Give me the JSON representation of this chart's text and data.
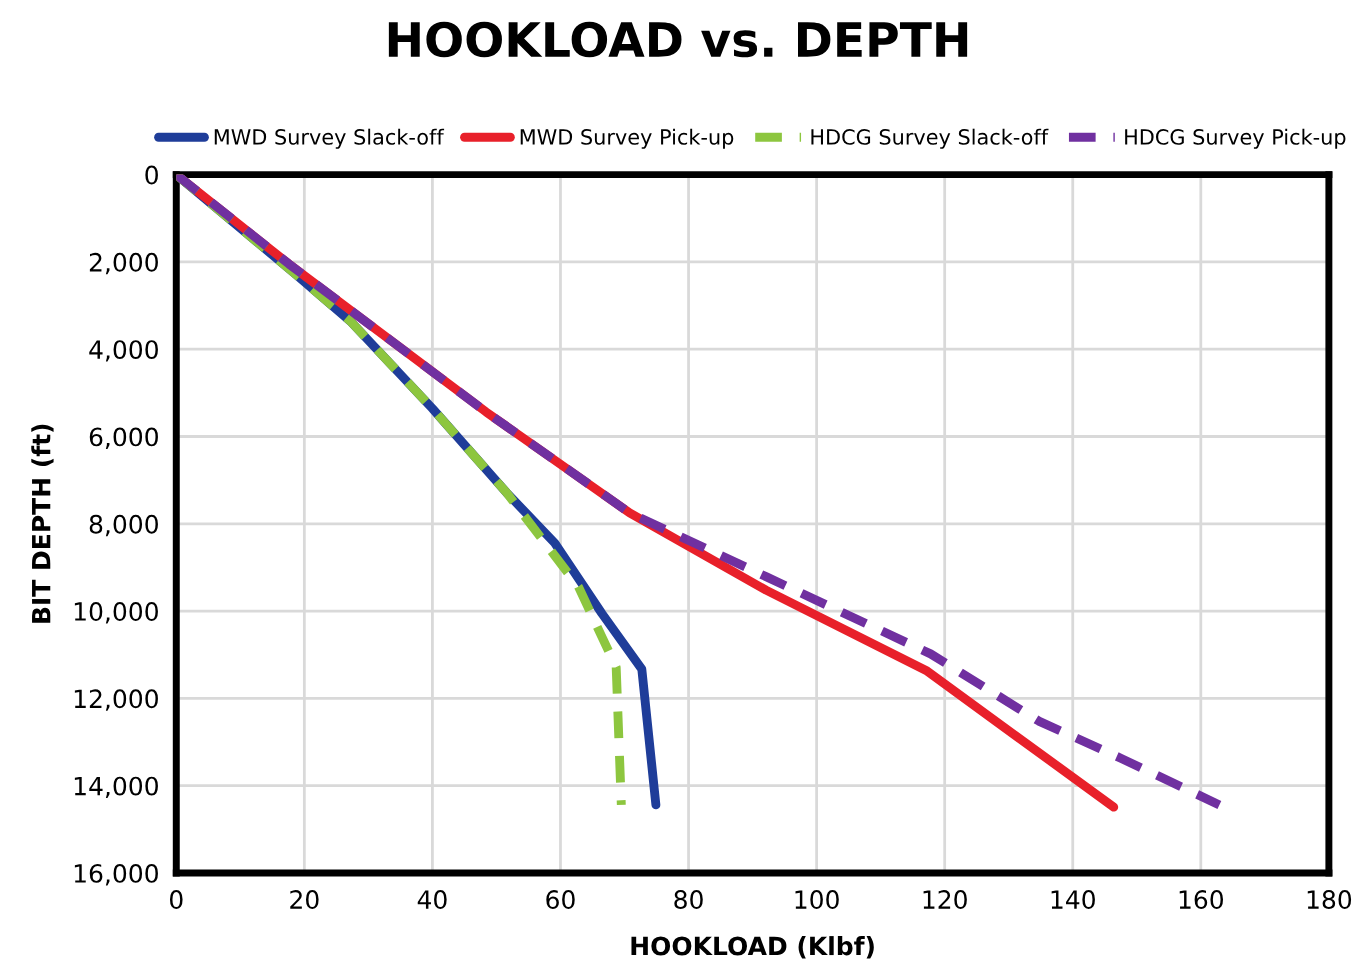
{
  "chart_data": {
    "type": "line",
    "title": "HOOKLOAD vs. DEPTH",
    "xlabel": "HOOKLOAD (Klbf)",
    "ylabel": "BIT DEPTH (ft)",
    "xlim": [
      0,
      180
    ],
    "xticks": [
      0,
      20,
      40,
      60,
      80,
      100,
      120,
      140,
      160,
      180
    ],
    "ylim": [
      16000,
      0
    ],
    "yticks": [
      0,
      {
        "value": 2000,
        "label": "2,000"
      },
      {
        "value": 4000,
        "label": "4,000"
      },
      {
        "value": 6000,
        "label": "6,000"
      },
      {
        "value": 8000,
        "label": "8,000"
      },
      {
        "value": 10000,
        "label": "10,000"
      },
      {
        "value": 12000,
        "label": "12,000"
      },
      {
        "value": 14000,
        "label": "14,000"
      },
      {
        "value": 16000,
        "label": "16,000"
      }
    ],
    "grid": true,
    "legend": "top",
    "marker": "none",
    "series": [
      {
        "name": "MWD Survey Slack-off",
        "color": "#1f3d99",
        "line_style": "solid",
        "x": [
          0,
          18.6,
          27.2,
          40,
          51.6,
          59.1,
          66.5,
          72.7,
          74.9
        ],
        "values": [
          0,
          2280,
          3360,
          5360,
          7290,
          8440,
          10060,
          11330,
          14440
        ]
      },
      {
        "name": "MWD Survey Pick-up",
        "color": "#e8202a",
        "line_style": "solid",
        "x": [
          0,
          17.6,
          48.4,
          70.8,
          92.1,
          117.1,
          146.4
        ],
        "values": [
          0,
          2050,
          5440,
          7750,
          9520,
          11360,
          14490
        ]
      },
      {
        "name": "HDCG Survey Slack-off",
        "color": "#8dc63f",
        "line_style": "dashed",
        "x": [
          0,
          18.6,
          27.2,
          40,
          51.6,
          62.8,
          68.7,
          69.5
        ],
        "values": [
          0,
          2280,
          3360,
          5360,
          7290,
          9440,
          11290,
          14440
        ]
      },
      {
        "name": "HDCG Survey Pick-up",
        "color": "#7030a0",
        "line_style": "dashed",
        "x": [
          0,
          17.6,
          48.4,
          70.8,
          92.1,
          117.8,
          134.7,
          147.5,
          162.9
        ],
        "values": [
          0,
          2050,
          5440,
          7750,
          9210,
          10980,
          12520,
          13370,
          14440
        ]
      }
    ]
  }
}
